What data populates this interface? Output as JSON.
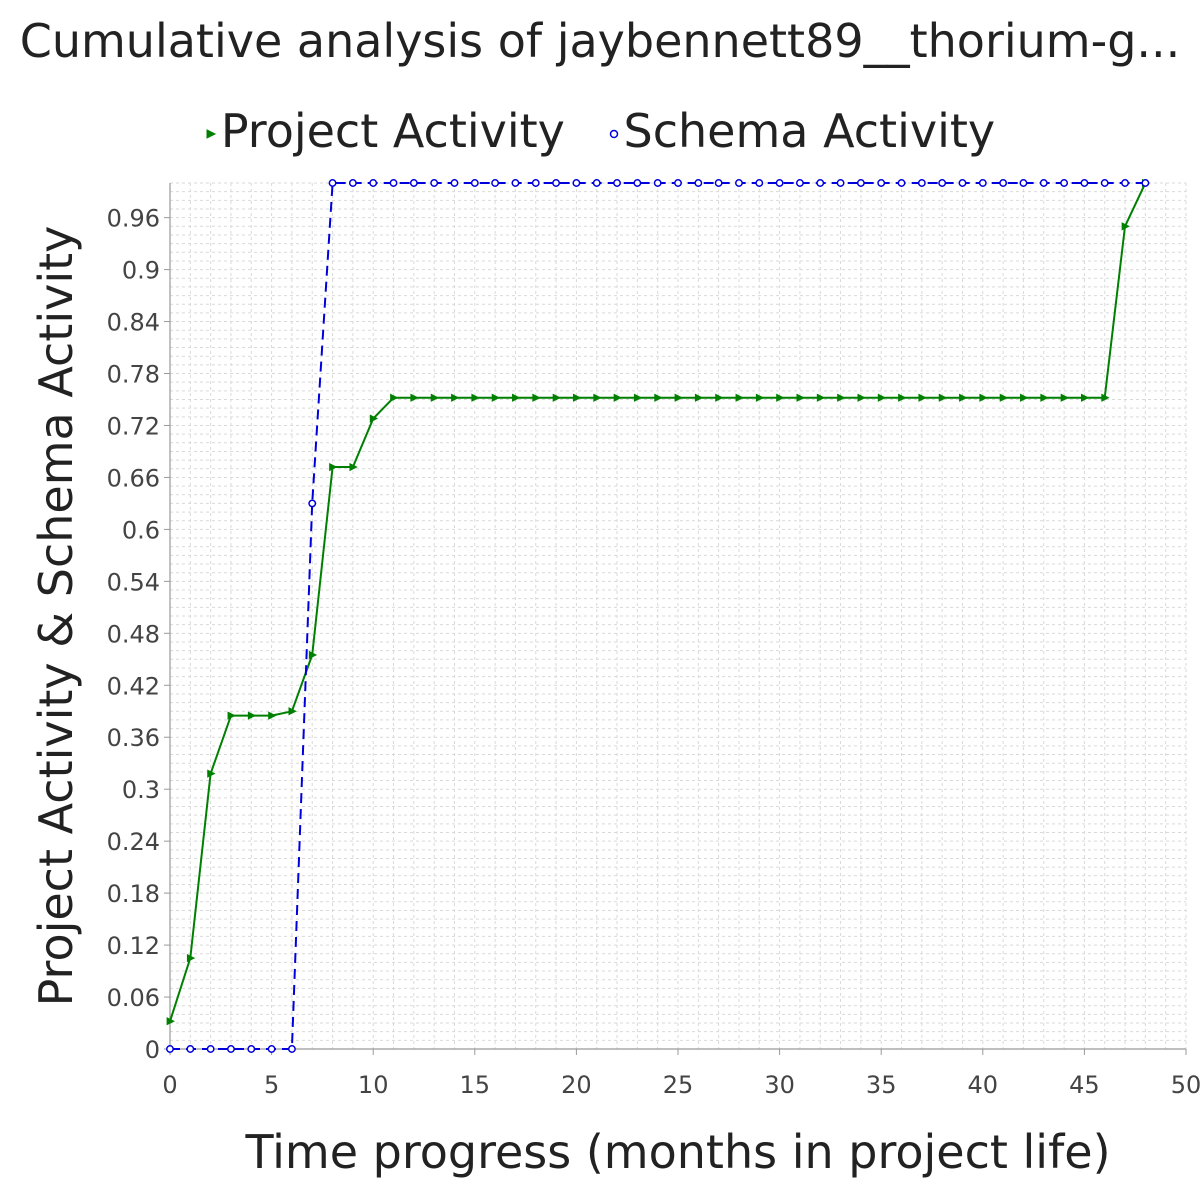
{
  "chart_data": {
    "type": "line",
    "title": "Cumulative analysis of jaybennett89__thorium-g...",
    "xlabel": "Time progress (months in project life)",
    "ylabel": "Project Activity & Schema Activity",
    "xlim": [
      0,
      50
    ],
    "ylim": [
      0,
      1.0
    ],
    "xticks": [
      0,
      5,
      10,
      15,
      20,
      25,
      30,
      35,
      40,
      45,
      50
    ],
    "yticks": [
      0,
      0.06,
      0.12,
      0.18,
      0.24,
      0.3,
      0.36,
      0.42,
      0.48,
      0.54,
      0.6,
      0.66,
      0.72,
      0.78,
      0.84,
      0.9,
      0.96
    ],
    "ytick_labels": [
      "0",
      "0.06",
      "0.12",
      "0.18",
      "0.24",
      "0.3",
      "0.36",
      "0.42",
      "0.48",
      "0.54",
      "0.6",
      "0.66",
      "0.72",
      "0.78",
      "0.84",
      "0.9",
      "0.96"
    ],
    "grid": true,
    "legend_position": "top",
    "series": [
      {
        "name": "Project Activity",
        "color": "#008000",
        "marker": "triangle-right",
        "line_style": "solid",
        "x": [
          0,
          1,
          2,
          3,
          4,
          5,
          6,
          7,
          8,
          9,
          10,
          11,
          12,
          13,
          14,
          15,
          16,
          17,
          18,
          19,
          20,
          21,
          22,
          23,
          24,
          25,
          26,
          27,
          28,
          29,
          30,
          31,
          32,
          33,
          34,
          35,
          36,
          37,
          38,
          39,
          40,
          41,
          42,
          43,
          44,
          45,
          46,
          47,
          48
        ],
        "values": [
          0.032,
          0.105,
          0.318,
          0.385,
          0.385,
          0.385,
          0.39,
          0.455,
          0.672,
          0.672,
          0.728,
          0.752,
          0.752,
          0.752,
          0.752,
          0.752,
          0.752,
          0.752,
          0.752,
          0.752,
          0.752,
          0.752,
          0.752,
          0.752,
          0.752,
          0.752,
          0.752,
          0.752,
          0.752,
          0.752,
          0.752,
          0.752,
          0.752,
          0.752,
          0.752,
          0.752,
          0.752,
          0.752,
          0.752,
          0.752,
          0.752,
          0.752,
          0.752,
          0.752,
          0.752,
          0.752,
          0.752,
          0.95,
          1.0
        ]
      },
      {
        "name": "Schema Activity",
        "color": "#0000dd",
        "marker": "circle",
        "line_style": "dashed",
        "x": [
          0,
          1,
          2,
          3,
          4,
          5,
          6,
          7,
          8,
          9,
          10,
          11,
          12,
          13,
          14,
          15,
          16,
          17,
          18,
          19,
          20,
          21,
          22,
          23,
          24,
          25,
          26,
          27,
          28,
          29,
          30,
          31,
          32,
          33,
          34,
          35,
          36,
          37,
          38,
          39,
          40,
          41,
          42,
          43,
          44,
          45,
          46,
          47,
          48
        ],
        "values": [
          0,
          0,
          0,
          0,
          0,
          0,
          0,
          0.63,
          1.0,
          1.0,
          1.0,
          1.0,
          1.0,
          1.0,
          1.0,
          1.0,
          1.0,
          1.0,
          1.0,
          1.0,
          1.0,
          1.0,
          1.0,
          1.0,
          1.0,
          1.0,
          1.0,
          1.0,
          1.0,
          1.0,
          1.0,
          1.0,
          1.0,
          1.0,
          1.0,
          1.0,
          1.0,
          1.0,
          1.0,
          1.0,
          1.0,
          1.0,
          1.0,
          1.0,
          1.0,
          1.0,
          1.0,
          1.0,
          1.0
        ]
      }
    ]
  }
}
